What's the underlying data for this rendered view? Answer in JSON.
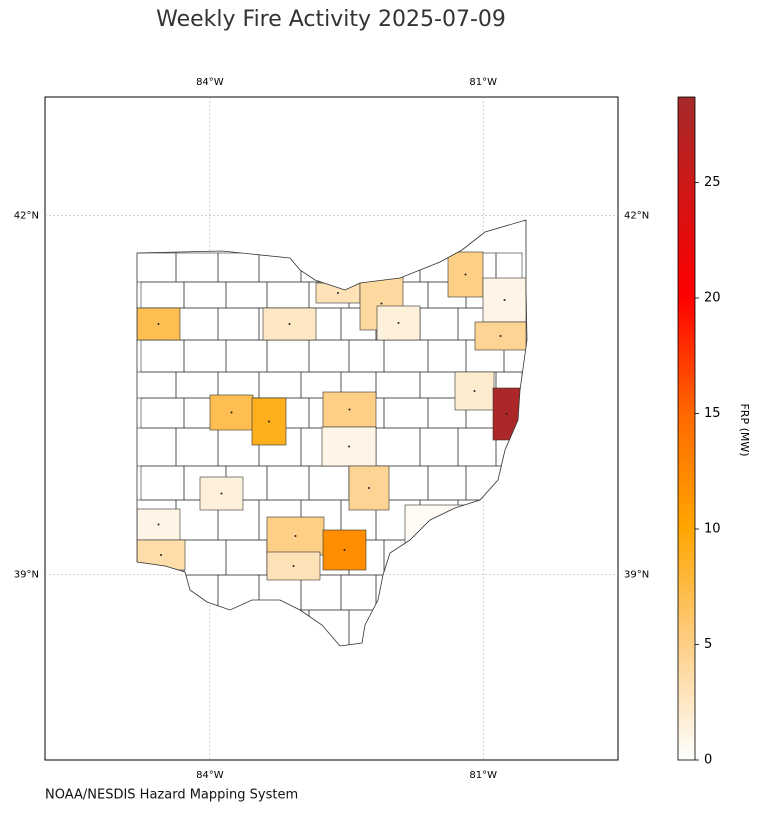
{
  "chart_data": {
    "type": "choropleth",
    "title": "Weekly Fire Activity 2025-07-09",
    "source": "NOAA/NESDIS Hazard Mapping System",
    "colorbar_label": "FRP (MW)",
    "xlim": [
      -85.81,
      -79.52
    ],
    "ylim": [
      37.45,
      42.99
    ],
    "xticks": [
      {
        "value": -84,
        "label": "84°W"
      },
      {
        "value": -81,
        "label": "81°W"
      }
    ],
    "yticks": [
      {
        "value": 42,
        "label": "42°N"
      },
      {
        "value": 39,
        "label": "39°N"
      }
    ],
    "grid": true,
    "clim": [
      0,
      28.7
    ],
    "cticks": [
      0,
      5,
      10,
      15,
      20,
      25
    ],
    "county_frp": [
      7,
      3,
      4,
      1.5,
      2.5,
      5,
      1,
      4.5,
      2,
      28,
      7,
      9,
      5,
      1,
      4.5,
      1.5,
      1,
      3.5,
      5,
      3,
      12,
      0.5
    ]
  }
}
